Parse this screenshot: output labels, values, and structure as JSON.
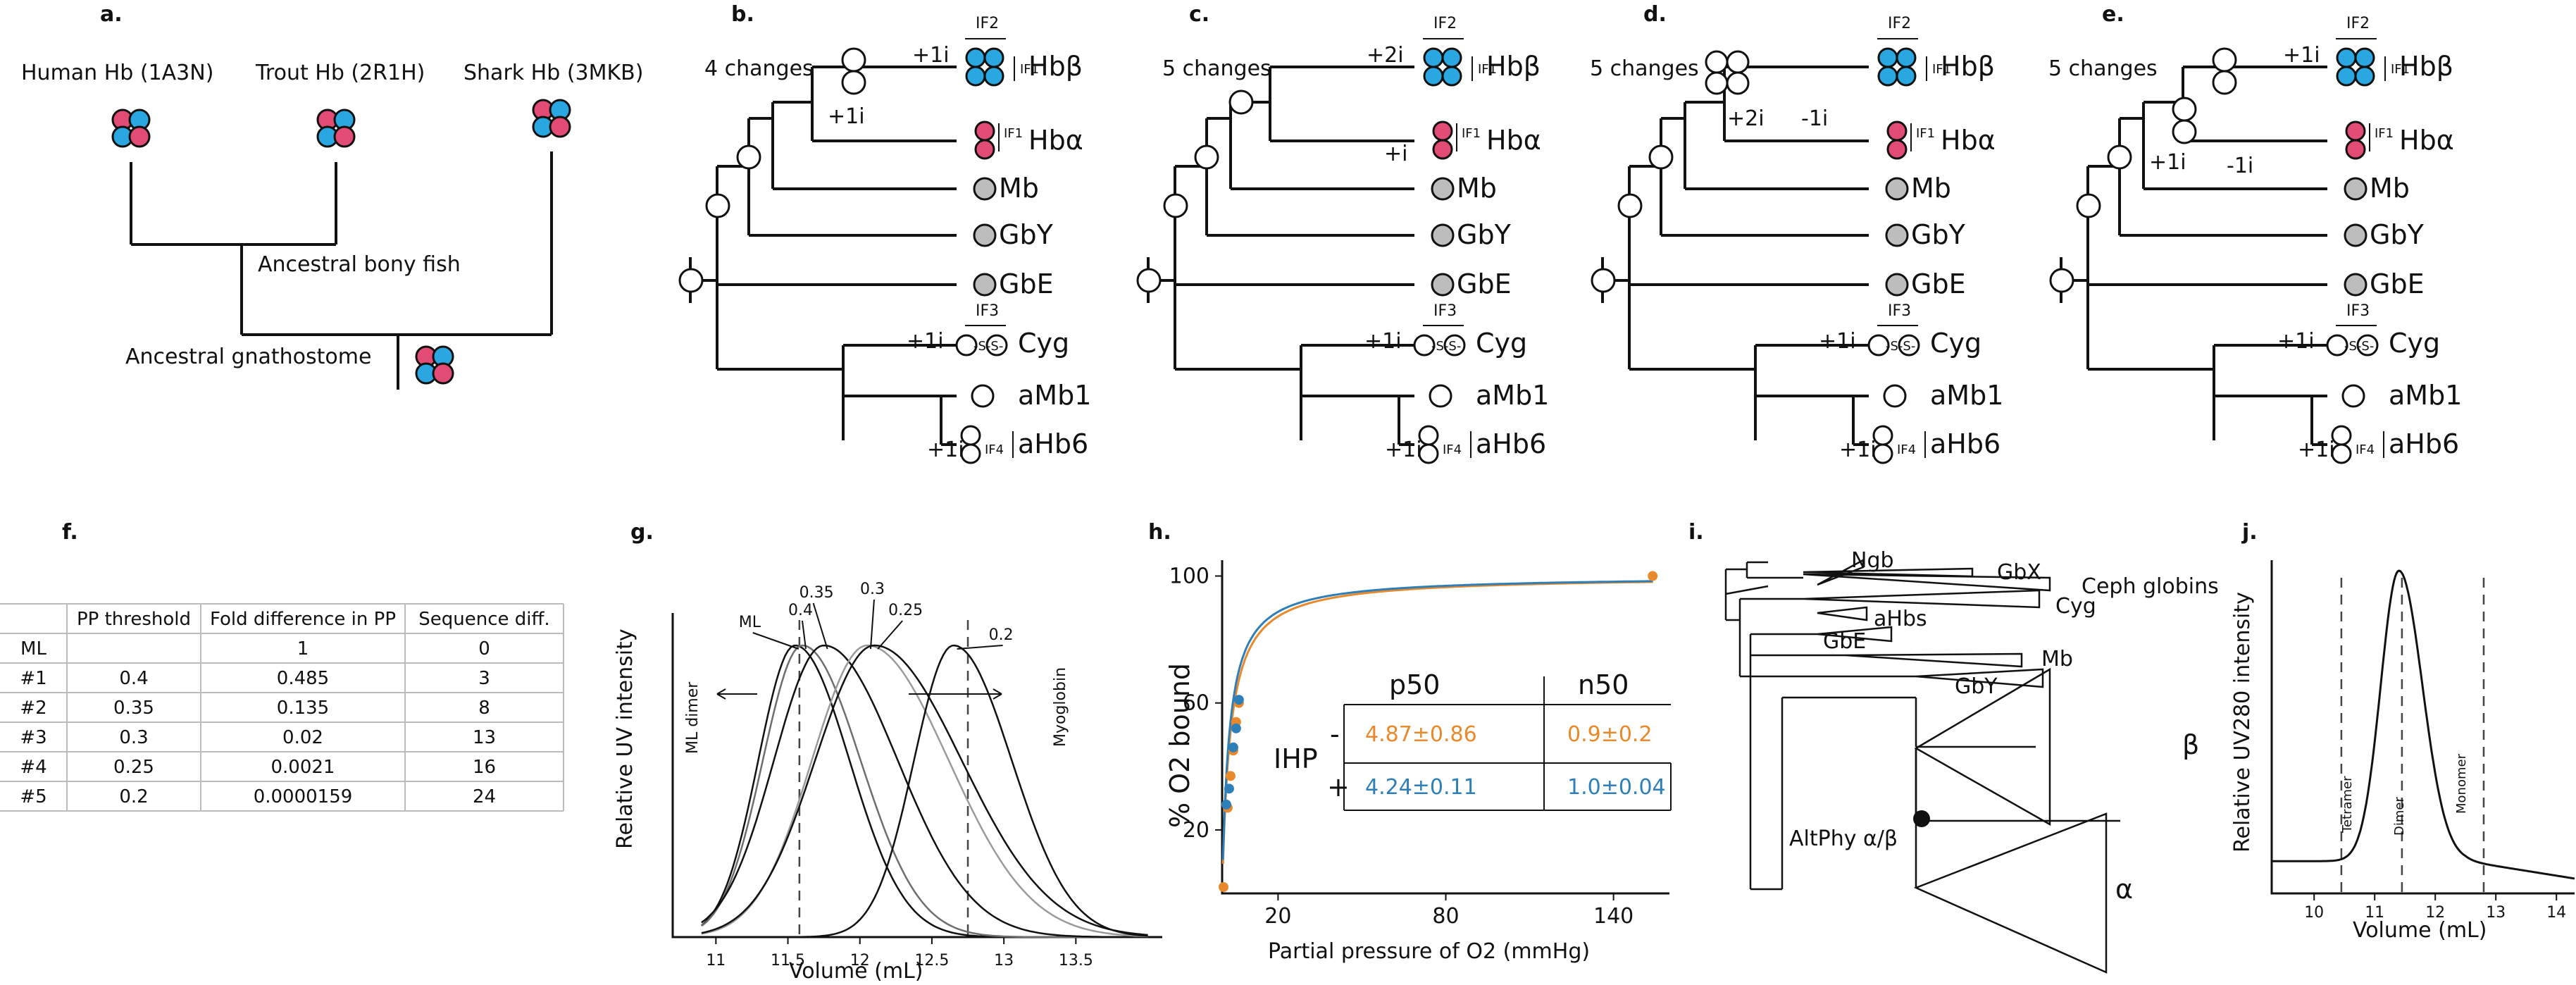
{
  "panel_labels": [
    "a.",
    "b.",
    "c.",
    "d.",
    "e.",
    "f.",
    "g.",
    "h.",
    "i.",
    "j."
  ],
  "panel_a": {
    "species": [
      "Human Hb (1A3N)",
      "Trout Hb (2R1H)",
      "Shark Hb (3MKB)"
    ],
    "ancestors": [
      "Ancestral bony fish",
      "Ancestral gnathostome"
    ]
  },
  "trees": {
    "taxa": [
      "Hbβ",
      "Hbα",
      "Mb",
      "GbY",
      "GbE",
      "Cyg",
      "aMb1",
      "aHb6"
    ],
    "interfaces": [
      "IF1",
      "IF2",
      "IF3",
      "IF4"
    ],
    "disulfide": "-S-S-",
    "b": {
      "changes": "4 changes",
      "events": [
        "+1i",
        "+1i",
        "+1i",
        "+1i"
      ]
    },
    "c": {
      "changes": "5 changes",
      "events": [
        "+2i",
        "+i",
        "+1i",
        "+1i"
      ]
    },
    "d": {
      "changes": "5 changes",
      "events": [
        "+2i",
        "-1i",
        "+1i",
        "+1i"
      ]
    },
    "e": {
      "changes": "5 changes",
      "events": [
        "+1i",
        "+1i",
        "-1i",
        "+1i",
        "+1i"
      ]
    }
  },
  "panel_f": {
    "headers": [
      "",
      "PP threshold",
      "Fold difference in PP",
      "Sequence diff."
    ],
    "rows": [
      [
        "ML",
        "",
        "1",
        "0"
      ],
      [
        "#1",
        "0.4",
        "0.485",
        "3"
      ],
      [
        "#2",
        "0.35",
        "0.135",
        "8"
      ],
      [
        "#3",
        "0.3",
        "0.02",
        "13"
      ],
      [
        "#4",
        "0.25",
        "0.0021",
        "16"
      ],
      [
        "#5",
        "0.2",
        "0.0000159",
        "24"
      ]
    ]
  },
  "panel_g": {
    "ylabel": "Relative UV intensity",
    "xlabel": "Volume (mL)",
    "xticks": [
      "11",
      "11.5",
      "12",
      "12.5",
      "13",
      "13.5"
    ],
    "curve_labels": [
      "ML",
      "0.4",
      "0.35",
      "0.3",
      "0.25",
      "0.2"
    ],
    "markers": [
      "ML dimer",
      "Myoglobin"
    ]
  },
  "panel_h": {
    "ylabel": "% O2 bound",
    "xlabel": "Partial pressure of O2 (mmHg)",
    "yticks": [
      "100",
      "60",
      "20"
    ],
    "xticks": [
      "20",
      "80",
      "140"
    ],
    "table": {
      "row_label": "IHP",
      "headers": [
        "p50",
        "n50"
      ],
      "rows": [
        {
          "sign": "-",
          "p50": "4.87±0.86",
          "n50": "0.9±0.2",
          "color": "#e8892b"
        },
        {
          "sign": "+",
          "p50": "4.24±0.11",
          "n50": "1.0±0.04",
          "color": "#2e7fb8"
        }
      ]
    }
  },
  "panel_i": {
    "clades": [
      "Ngb",
      "GbX",
      "Ceph globins",
      "Cyg",
      "aHbs",
      "GbE",
      "Mb",
      "GbY",
      "β",
      "α"
    ],
    "node_label": "AltPhy α/β"
  },
  "panel_j": {
    "ylabel": "Relative UV280 intensity",
    "xlabel": "Volume (mL)",
    "xticks": [
      "10",
      "11",
      "12",
      "13",
      "14"
    ],
    "markers": [
      "Tetramer",
      "Dimer",
      "Monomer"
    ]
  },
  "chart_data": [
    {
      "type": "line",
      "panel": "g",
      "xlabel": "Volume (mL)",
      "ylabel": "Relative UV intensity",
      "xlim": [
        10.7,
        14.1
      ],
      "ylim": [
        0,
        1
      ],
      "series": [
        {
          "name": "ML",
          "peak": 11.55,
          "width": 0.28,
          "gray": "#111111"
        },
        {
          "name": "0.4",
          "peak": 11.6,
          "width": 0.3,
          "gray": "#6e6e6e"
        },
        {
          "name": "0.35",
          "peak": 11.75,
          "width": 0.38,
          "gray": "#111111"
        },
        {
          "name": "0.3",
          "peak": 12.05,
          "width": 0.42,
          "gray": "#9a9a9a"
        },
        {
          "name": "0.25",
          "peak": 12.1,
          "width": 0.45,
          "gray": "#111111"
        },
        {
          "name": "0.2",
          "peak": 12.65,
          "width": 0.3,
          "gray": "#111111"
        }
      ],
      "reference_lines": [
        11.58,
        12.75
      ]
    },
    {
      "type": "scatter",
      "panel": "h",
      "xlabel": "Partial pressure of O2 (mmHg)",
      "ylabel": "% O2 bound",
      "xlim": [
        0,
        160
      ],
      "ylim": [
        0,
        105
      ],
      "series": [
        {
          "name": "-IHP",
          "color": "#e8892b",
          "x": [
            0.5,
            2,
            3,
            4,
            5,
            6,
            154
          ],
          "y": [
            2,
            27,
            37,
            45,
            54,
            60,
            100
          ],
          "fit_p50": 4.87
        },
        {
          "name": "+IHP",
          "color": "#2e7fb8",
          "x": [
            1.5,
            2.5,
            4,
            5,
            6
          ],
          "y": [
            28,
            33,
            46,
            52,
            61
          ],
          "fit_p50": 4.24
        }
      ]
    },
    {
      "type": "line",
      "panel": "j",
      "xlabel": "Volume (mL)",
      "ylabel": "Relative UV280 intensity",
      "xlim": [
        9.3,
        14.3
      ],
      "ylim": [
        0,
        1
      ],
      "peak": 11.4,
      "reference_lines": [
        10.45,
        11.45,
        12.8
      ]
    }
  ]
}
